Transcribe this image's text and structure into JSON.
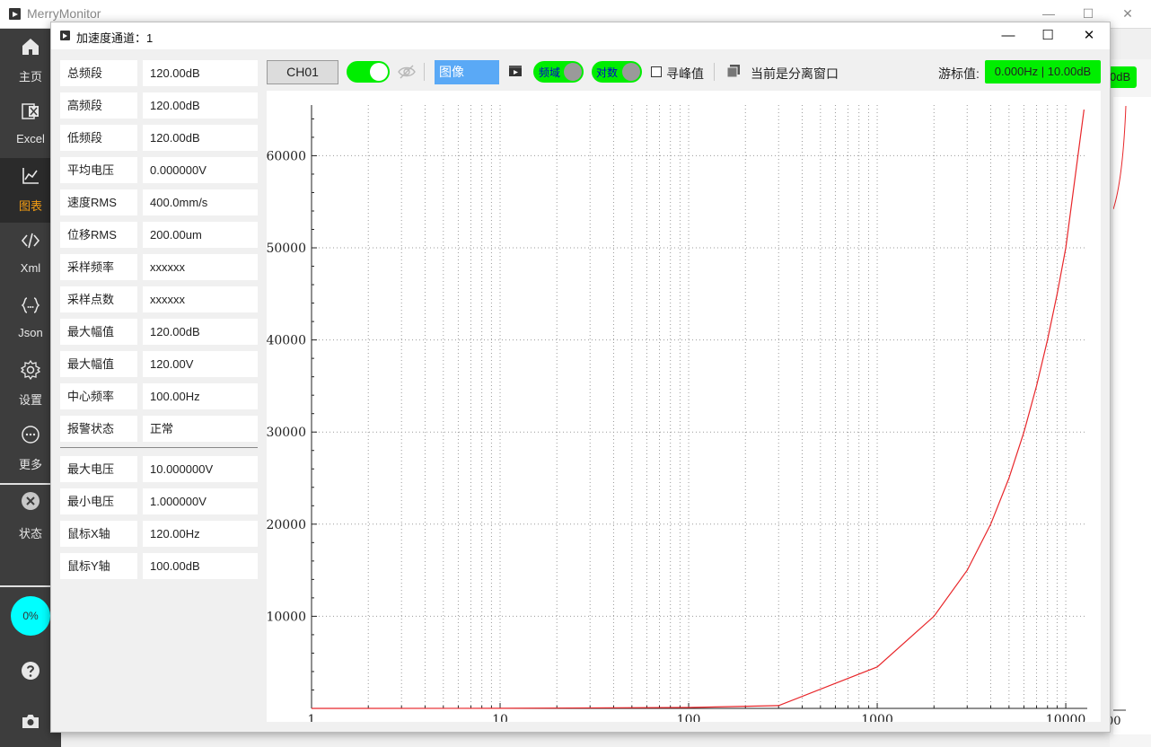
{
  "app": {
    "title": "MerryMonitor"
  },
  "sidebar": {
    "items": [
      {
        "label": "主页",
        "icon": "home-icon"
      },
      {
        "label": "Excel",
        "icon": "excel-icon"
      },
      {
        "label": "图表",
        "icon": "chart-icon"
      },
      {
        "label": "Xml",
        "icon": "code-icon"
      },
      {
        "label": "Json",
        "icon": "braces-icon"
      },
      {
        "label": "设置",
        "icon": "gear-icon"
      },
      {
        "label": "更多",
        "icon": "more-icon"
      },
      {
        "label": "状态",
        "icon": "status-close-icon"
      }
    ],
    "active": "图表",
    "progress": "0%",
    "active_color": "#f39c12"
  },
  "background": {
    "cursor_badge": "0dB",
    "xtick_fragment": "00"
  },
  "window": {
    "title": "加速度通道：1",
    "minimize": "—",
    "maximize": "☐",
    "close": "✕"
  },
  "info_panel": {
    "rows": [
      {
        "label": "总频段",
        "value": "120.00dB"
      },
      {
        "label": "高频段",
        "value": "120.00dB"
      },
      {
        "label": "低频段",
        "value": "120.00dB"
      },
      {
        "label": "平均电压",
        "value": "0.000000V"
      },
      {
        "label": "速度RMS",
        "value": "400.0mm/s"
      },
      {
        "label": "位移RMS",
        "value": "200.00um"
      },
      {
        "label": "采样频率",
        "value": "xxxxxx"
      },
      {
        "label": "采样点数",
        "value": "xxxxxx"
      },
      {
        "label": "最大幅值",
        "value": "120.00dB"
      },
      {
        "label": "最大幅值",
        "value": "120.00V"
      },
      {
        "label": "中心频率",
        "value": "100.00Hz"
      },
      {
        "label": "报警状态",
        "value": "正常"
      }
    ],
    "rows2": [
      {
        "label": "最大电压",
        "value": "10.000000V"
      },
      {
        "label": "最小电压",
        "value": "1.000000V"
      },
      {
        "label": "鼠标X轴",
        "value": "120.00Hz"
      },
      {
        "label": "鼠标Y轴",
        "value": "100.00dB"
      }
    ]
  },
  "toolbar": {
    "channel": "CH01",
    "mode": "图像",
    "freq_toggle": "频域",
    "log_toggle": "对数",
    "peak_checkbox_label": "寻峰值",
    "detach_status": "当前是分离窗口",
    "cursor_label": "游标值:",
    "cursor_value": "0.000Hz | 10.00dB",
    "accent_green": "#00ee00",
    "accent_blue": "#5aa9f6"
  },
  "chart_data": {
    "type": "line",
    "title": "",
    "xlabel": "",
    "ylabel": "",
    "xscale": "log",
    "xlim": [
      1,
      13000
    ],
    "ylim": [
      0,
      65500
    ],
    "x_ticks": [
      "1",
      "10",
      "100",
      "1000",
      "10000"
    ],
    "y_ticks": [
      "10000",
      "20000",
      "30000",
      "40000",
      "50000",
      "60000"
    ],
    "grid": true,
    "line_color": "#e8262a",
    "series": [
      {
        "x": [
          1,
          10,
          100,
          300,
          1000,
          2000,
          3000,
          4000,
          5000,
          6000,
          7000,
          8000,
          9000,
          10000,
          12500
        ],
        "y": [
          0,
          10,
          100,
          300,
          4500,
          10000,
          15000,
          20000,
          25000,
          30000,
          35000,
          40000,
          45000,
          50000,
          65000
        ]
      }
    ]
  }
}
